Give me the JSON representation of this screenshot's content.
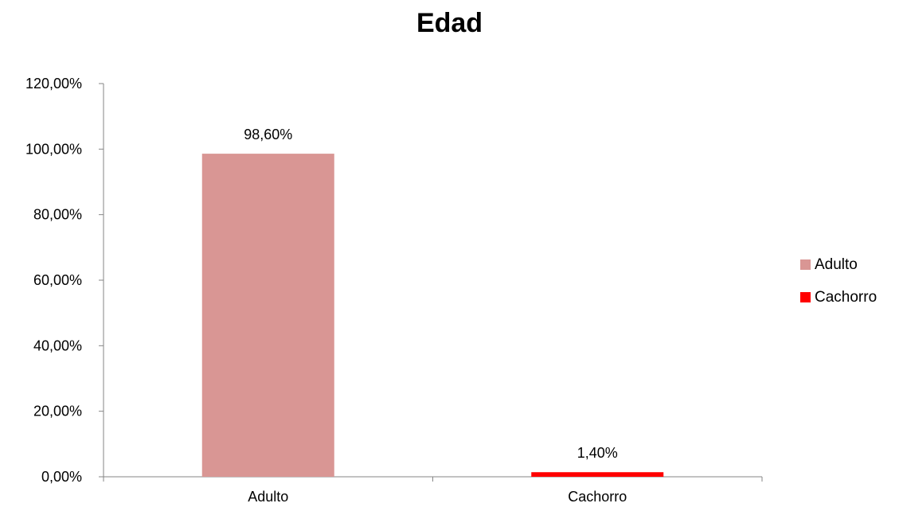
{
  "chart_data": {
    "type": "bar",
    "title": "Edad",
    "xlabel": "",
    "ylabel": "",
    "categories": [
      "Adulto",
      "Cachorro"
    ],
    "series": [
      {
        "name": "Adulto",
        "color": "#d99694",
        "values": [
          0.986,
          null
        ]
      },
      {
        "name": "Cachorro",
        "color": "#ff0000",
        "values": [
          null,
          0.014
        ]
      }
    ],
    "data_labels": [
      "98,60%",
      "1,40%"
    ],
    "yticks": [
      "0,00%",
      "20,00%",
      "40,00%",
      "60,00%",
      "80,00%",
      "100,00%",
      "120,00%"
    ],
    "ylim": [
      0,
      1.2
    ],
    "grid": false,
    "legend": {
      "position": "right",
      "entries": [
        "Adulto",
        "Cachorro"
      ]
    }
  }
}
